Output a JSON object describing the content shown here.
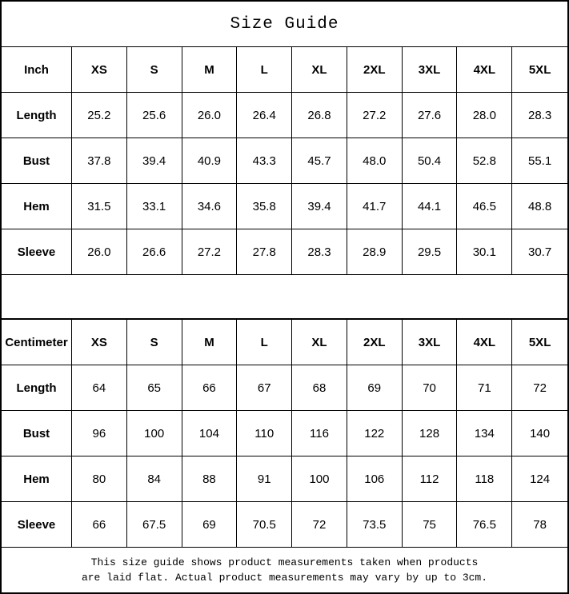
{
  "title": "Size Guide",
  "sizes": [
    "XS",
    "S",
    "M",
    "L",
    "XL",
    "2XL",
    "3XL",
    "4XL",
    "5XL"
  ],
  "tables": [
    {
      "unit_label": "Inch",
      "rows": [
        {
          "label": "Length",
          "values": [
            "25.2",
            "25.6",
            "26.0",
            "26.4",
            "26.8",
            "27.2",
            "27.6",
            "28.0",
            "28.3"
          ]
        },
        {
          "label": "Bust",
          "values": [
            "37.8",
            "39.4",
            "40.9",
            "43.3",
            "45.7",
            "48.0",
            "50.4",
            "52.8",
            "55.1"
          ]
        },
        {
          "label": "Hem",
          "values": [
            "31.5",
            "33.1",
            "34.6",
            "35.8",
            "39.4",
            "41.7",
            "44.1",
            "46.5",
            "48.8"
          ]
        },
        {
          "label": "Sleeve",
          "values": [
            "26.0",
            "26.6",
            "27.2",
            "27.8",
            "28.3",
            "28.9",
            "29.5",
            "30.1",
            "30.7"
          ]
        }
      ]
    },
    {
      "unit_label": "Centimeter",
      "rows": [
        {
          "label": "Length",
          "values": [
            "64",
            "65",
            "66",
            "67",
            "68",
            "69",
            "70",
            "71",
            "72"
          ]
        },
        {
          "label": "Bust",
          "values": [
            "96",
            "100",
            "104",
            "110",
            "116",
            "122",
            "128",
            "134",
            "140"
          ]
        },
        {
          "label": "Hem",
          "values": [
            "80",
            "84",
            "88",
            "91",
            "100",
            "106",
            "112",
            "118",
            "124"
          ]
        },
        {
          "label": "Sleeve",
          "values": [
            "66",
            "67.5",
            "69",
            "70.5",
            "72",
            "73.5",
            "75",
            "76.5",
            "78"
          ]
        }
      ]
    }
  ],
  "footer": {
    "lines": [
      "This size guide shows product measurements taken when products",
      "are laid flat. Actual product measurements may vary by up to 3cm."
    ]
  },
  "colors": {
    "border": "#000000",
    "background": "#ffffff",
    "text": "#000000"
  },
  "chart_data": [
    {
      "type": "table",
      "title": "Size Guide",
      "unit": "Inch",
      "columns": [
        "Inch",
        "XS",
        "S",
        "M",
        "L",
        "XL",
        "2XL",
        "3XL",
        "4XL",
        "5XL"
      ],
      "rows": [
        {
          "label": "Length",
          "values": [
            25.2,
            25.6,
            26.0,
            26.4,
            26.8,
            27.2,
            27.6,
            28.0,
            28.3
          ]
        },
        {
          "label": "Bust",
          "values": [
            37.8,
            39.4,
            40.9,
            43.3,
            45.7,
            48.0,
            50.4,
            52.8,
            55.1
          ]
        },
        {
          "label": "Hem",
          "values": [
            31.5,
            33.1,
            34.6,
            35.8,
            39.4,
            41.7,
            44.1,
            46.5,
            48.8
          ]
        },
        {
          "label": "Sleeve",
          "values": [
            26.0,
            26.6,
            27.2,
            27.8,
            28.3,
            28.9,
            29.5,
            30.1,
            30.7
          ]
        }
      ]
    },
    {
      "type": "table",
      "title": "Size Guide",
      "unit": "Centimeter",
      "columns": [
        "Centimeter",
        "XS",
        "S",
        "M",
        "L",
        "XL",
        "2XL",
        "3XL",
        "4XL",
        "5XL"
      ],
      "rows": [
        {
          "label": "Length",
          "values": [
            64,
            65,
            66,
            67,
            68,
            69,
            70,
            71,
            72
          ]
        },
        {
          "label": "Bust",
          "values": [
            96,
            100,
            104,
            110,
            116,
            122,
            128,
            134,
            140
          ]
        },
        {
          "label": "Hem",
          "values": [
            80,
            84,
            88,
            91,
            100,
            106,
            112,
            118,
            124
          ]
        },
        {
          "label": "Sleeve",
          "values": [
            66,
            67.5,
            69,
            70.5,
            72,
            73.5,
            75,
            76.5,
            78
          ]
        }
      ]
    }
  ]
}
